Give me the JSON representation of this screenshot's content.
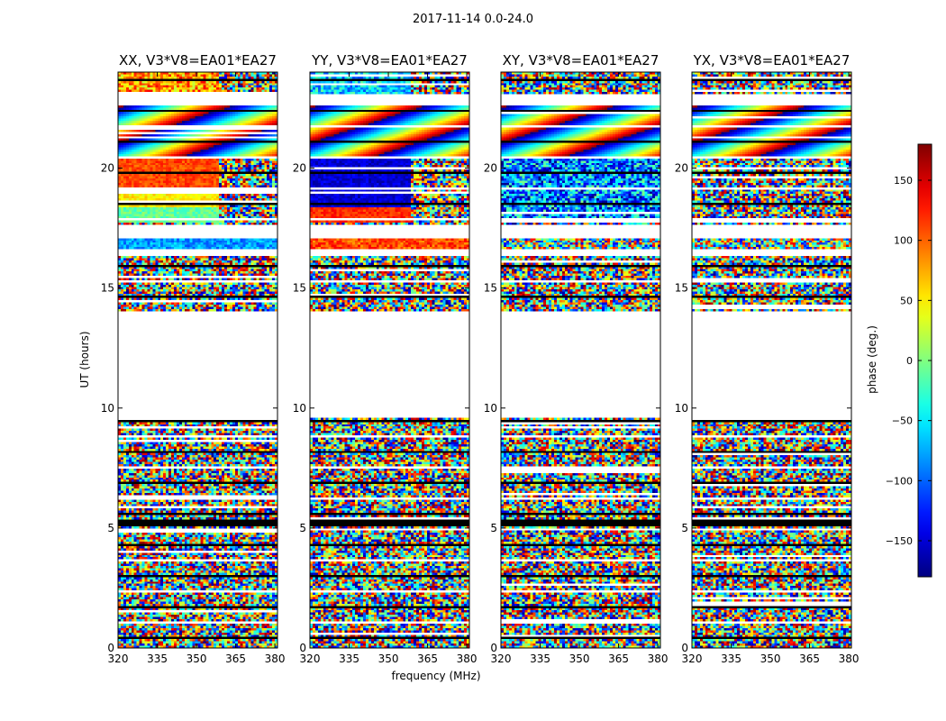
{
  "chart_data": {
    "type": "heatmap",
    "title": "2017-11-14 0.0-24.0",
    "xlabel": "frequency (MHz)",
    "ylabel": "UT (hours)",
    "xlim": [
      320,
      381
    ],
    "ylim": [
      0,
      24
    ],
    "xticks": [
      320,
      335,
      350,
      365,
      380
    ],
    "yticks": [
      0,
      5,
      10,
      15,
      20
    ],
    "colorbar": {
      "label": "phase (deg.)",
      "range": [
        -180,
        180
      ],
      "ticks": [
        -150,
        -100,
        -50,
        0,
        50,
        100,
        150
      ],
      "tick_labels": [
        "−150",
        "−100",
        "−50",
        "0",
        "50",
        "100",
        "150"
      ],
      "colormap": "jet"
    },
    "panels": [
      {
        "name": "XX, V3*V8=EA01*EA27"
      },
      {
        "name": "YY, V3*V8=EA01*EA27"
      },
      {
        "name": "XY, V3*V8=EA01*EA27"
      },
      {
        "name": "YX, V3*V8=EA01*EA27"
      }
    ],
    "flagged_ut_ranges": [
      [
        9.6,
        13.9
      ],
      [
        16.3,
        16.5
      ],
      [
        17.1,
        17.6
      ],
      [
        22.6,
        23.0
      ]
    ],
    "dense_flag_ut_ranges": [
      [
        5.05,
        5.35
      ]
    ]
  }
}
